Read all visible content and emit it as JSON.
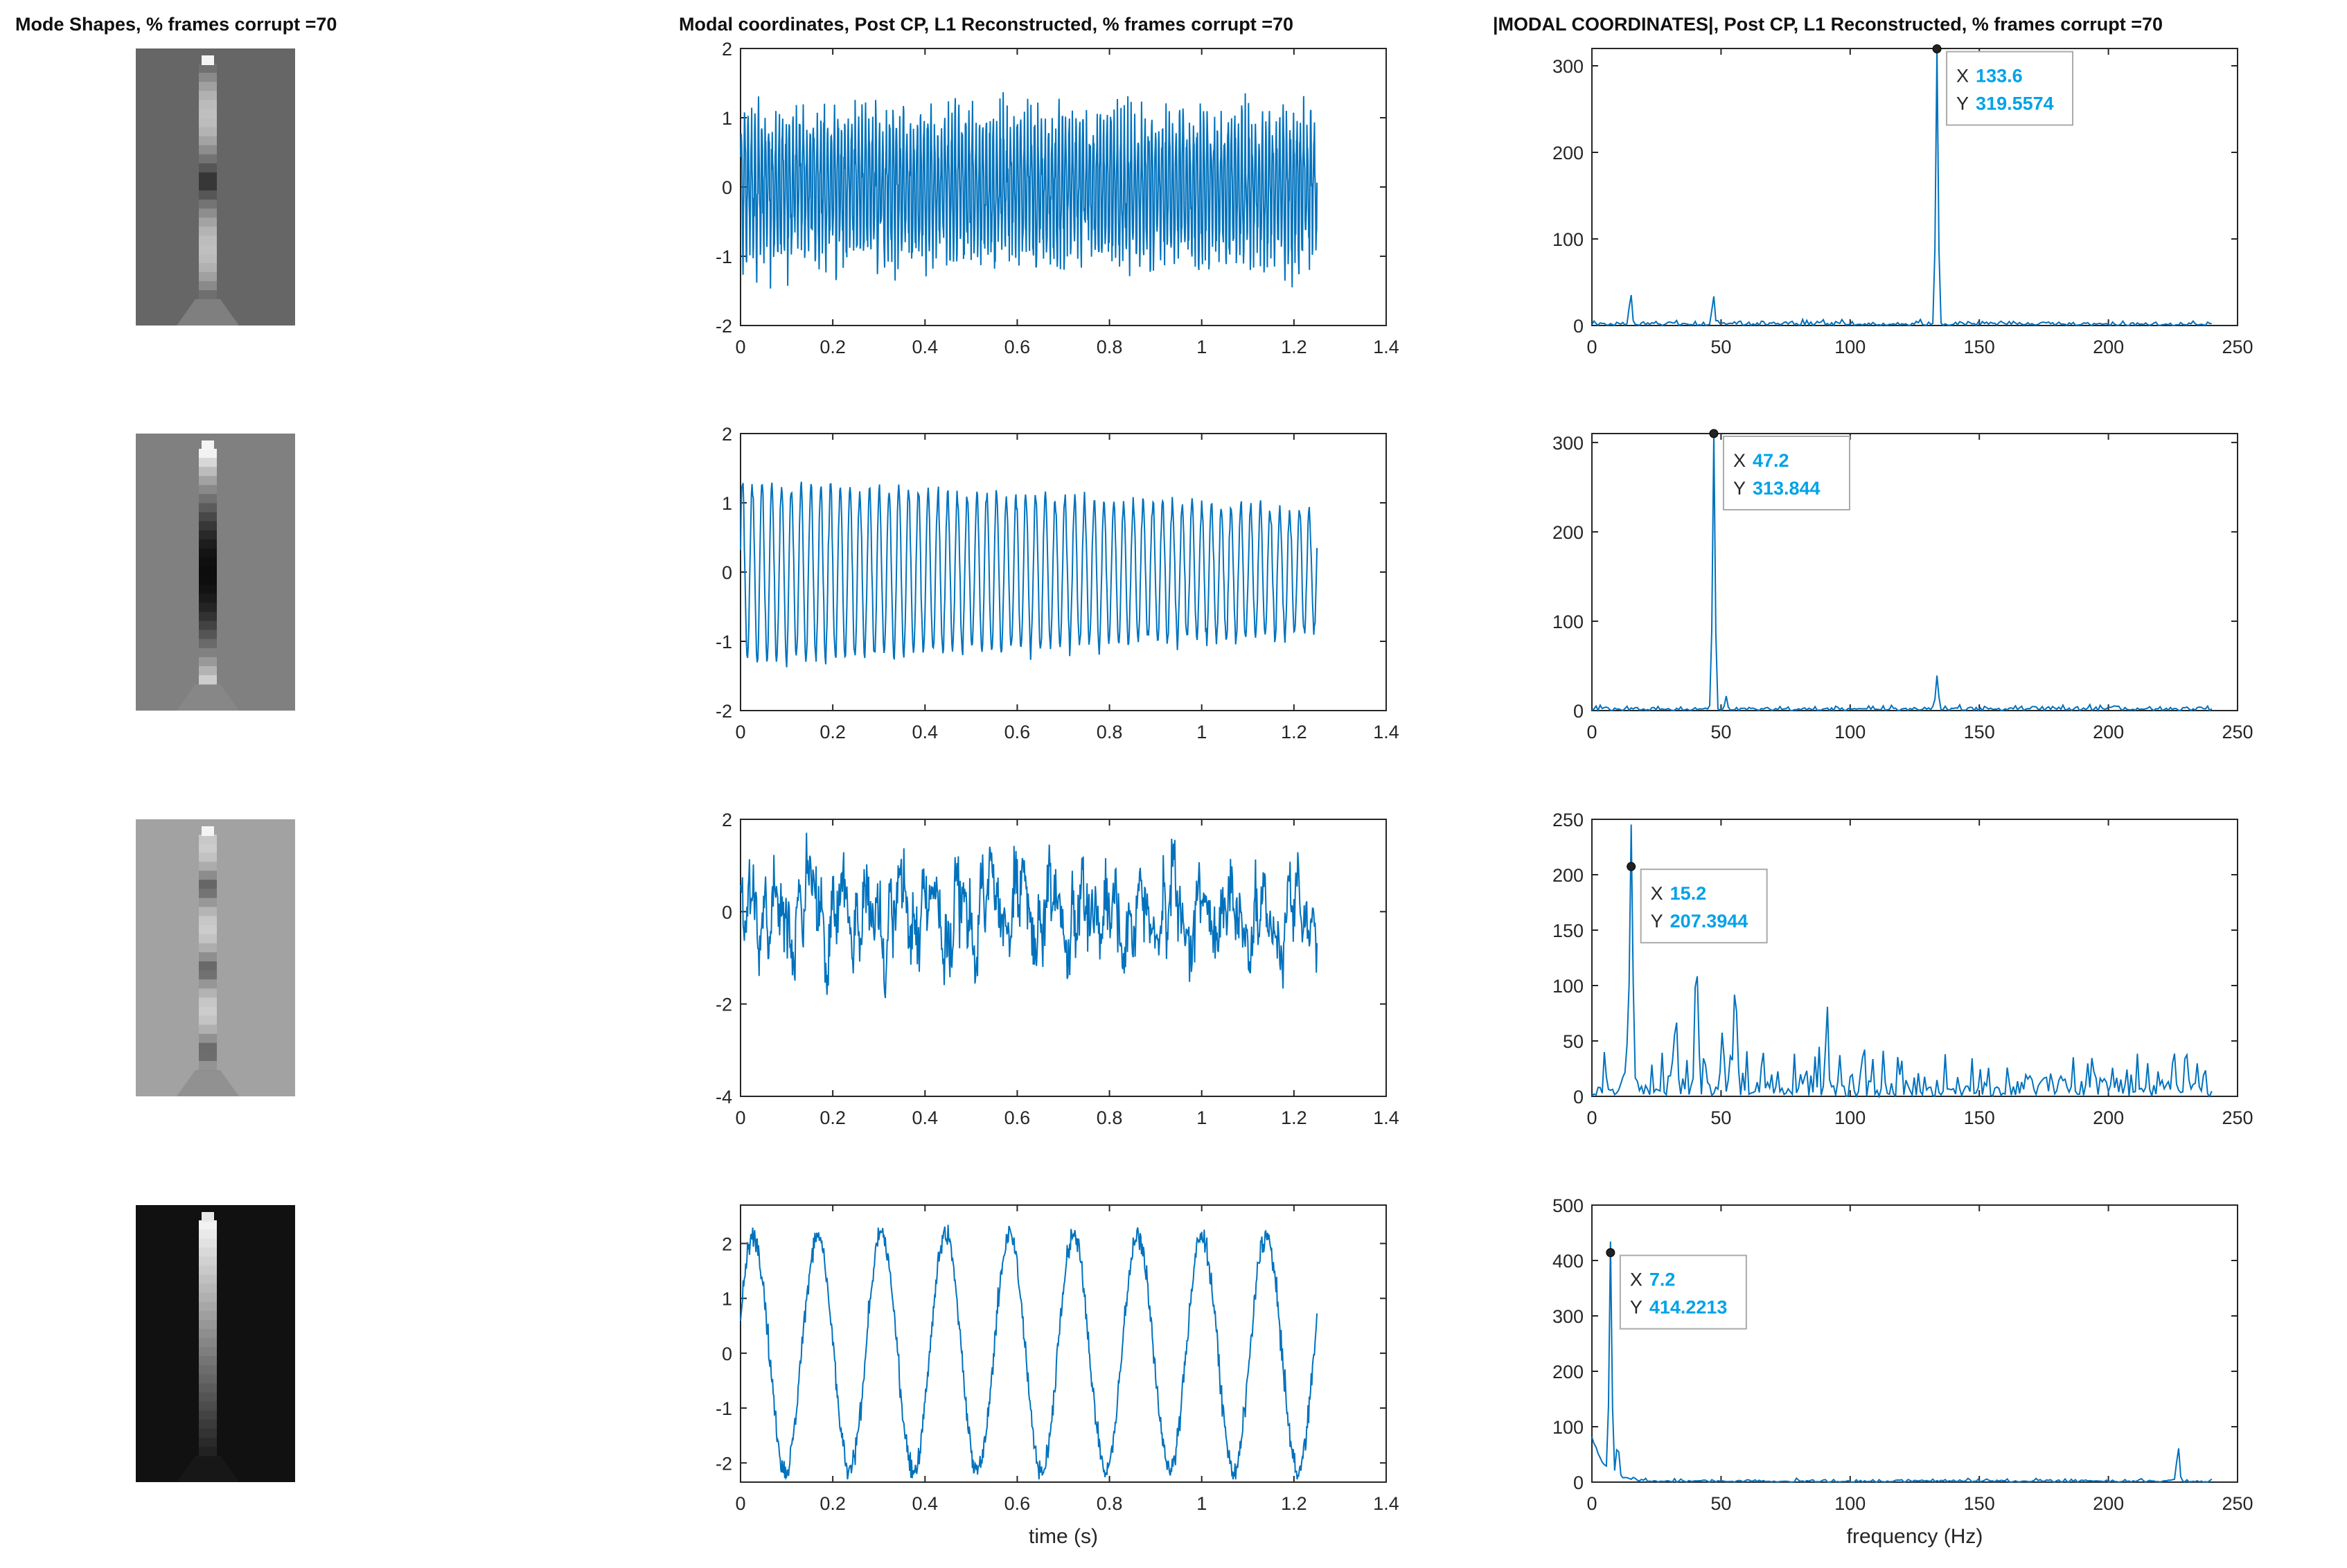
{
  "titles": {
    "col1": "Mode Shapes, % frames corrupt =70",
    "col2": "Modal coordinates, Post CP, L1 Reconstructed, % frames corrupt =70",
    "col3": "|MODAL COORDINATES|, Post CP, L1 Reconstructed, % frames corrupt =70"
  },
  "mode_shapes": [
    {
      "background": "#666666"
    },
    {
      "background": "#808080"
    },
    {
      "background": "#a2a2a2"
    },
    {
      "background": "#111111"
    }
  ],
  "chart_data": [
    {
      "type": "line",
      "panel": "time-1",
      "xlim": [
        0,
        1.4
      ],
      "ylim": [
        -2,
        2
      ],
      "xticks": [
        "0",
        "0.2",
        "0.4",
        "0.6",
        "0.8",
        "1",
        "1.2",
        "1.4"
      ],
      "yticks": [
        "-2",
        "-1",
        "0",
        "1",
        "2"
      ],
      "xlabel": "",
      "series": [
        {
          "frequency_hz": 133.6,
          "amplitude": 0.9,
          "noise": 0.45,
          "x_end": 1.25
        }
      ]
    },
    {
      "type": "line",
      "panel": "freq-1",
      "xlim": [
        0,
        250
      ],
      "ylim": [
        0,
        320
      ],
      "xticks": [
        "0",
        "50",
        "100",
        "150",
        "200",
        "250"
      ],
      "yticks": [
        "0",
        "100",
        "200",
        "300"
      ],
      "xlabel": "",
      "peaks": [
        {
          "x": 133.6,
          "y": 319.5574
        },
        {
          "x": 15,
          "y": 38
        },
        {
          "x": 47,
          "y": 30
        }
      ],
      "datatip": {
        "x_label": "X",
        "x_value": "133.6",
        "y_label": "Y",
        "y_value": "319.5574"
      }
    },
    {
      "type": "line",
      "panel": "time-2",
      "xlim": [
        0,
        1.4
      ],
      "ylim": [
        -2,
        2
      ],
      "xticks": [
        "0",
        "0.2",
        "0.4",
        "0.6",
        "0.8",
        "1",
        "1.2",
        "1.4"
      ],
      "yticks": [
        "-2",
        "-1",
        "0",
        "1",
        "2"
      ],
      "xlabel": "",
      "series": [
        {
          "frequency_hz": 47.2,
          "amplitude": 1.3,
          "noise": 0.12,
          "x_end": 1.25
        }
      ]
    },
    {
      "type": "line",
      "panel": "freq-2",
      "xlim": [
        0,
        250
      ],
      "ylim": [
        0,
        310
      ],
      "xticks": [
        "0",
        "50",
        "100",
        "150",
        "200",
        "250"
      ],
      "yticks": [
        "0",
        "100",
        "200",
        "300"
      ],
      "xlabel": "",
      "peaks": [
        {
          "x": 47.2,
          "y": 313.844
        },
        {
          "x": 133.6,
          "y": 38
        },
        {
          "x": 52,
          "y": 15
        }
      ],
      "datatip": {
        "x_label": "X",
        "x_value": "47.2",
        "y_label": "Y",
        "y_value": "313.844"
      }
    },
    {
      "type": "line",
      "panel": "time-3",
      "xlim": [
        0,
        1.4
      ],
      "ylim": [
        -4,
        2
      ],
      "xticks": [
        "0",
        "0.2",
        "0.4",
        "0.6",
        "0.8",
        "1",
        "1.2",
        "1.4"
      ],
      "yticks": [
        "-4",
        "-2",
        "0",
        "2"
      ],
      "xlabel": "",
      "series": [
        {
          "frequency_hz": 15.2,
          "amplitude": 0.7,
          "noise": 0.7,
          "x_end": 1.25
        }
      ]
    },
    {
      "type": "line",
      "panel": "freq-3",
      "xlim": [
        0,
        250
      ],
      "ylim": [
        0,
        250
      ],
      "xticks": [
        "0",
        "50",
        "100",
        "150",
        "200",
        "250"
      ],
      "yticks": [
        "0",
        "50",
        "100",
        "150",
        "200",
        "250"
      ],
      "xlabel": "",
      "peaks": [
        {
          "x": 15.2,
          "y": 207.3944
        },
        {
          "x": 40.5,
          "y": 120
        },
        {
          "x": 55.5,
          "y": 92
        },
        {
          "x": 32.5,
          "y": 66
        },
        {
          "x": 50.5,
          "y": 48
        },
        {
          "x": 91,
          "y": 45
        }
      ],
      "datatip": {
        "x_label": "X",
        "x_value": "15.2",
        "y_label": "Y",
        "y_value": "207.3944"
      }
    },
    {
      "type": "line",
      "panel": "time-4",
      "xlim": [
        0,
        1.4
      ],
      "ylim": [
        -2.35,
        2.7
      ],
      "xticks": [
        "0",
        "0.2",
        "0.4",
        "0.6",
        "0.8",
        "1",
        "1.2",
        "1.4"
      ],
      "yticks": [
        "-2",
        "-1",
        "0",
        "1",
        "2"
      ],
      "xlabel": "time (s)",
      "series": [
        {
          "frequency_hz": 7.2,
          "amplitude": 2.15,
          "noise": 0.22,
          "x_end": 1.25
        }
      ]
    },
    {
      "type": "line",
      "panel": "freq-4",
      "xlim": [
        0,
        250
      ],
      "ylim": [
        0,
        500
      ],
      "xticks": [
        "0",
        "50",
        "100",
        "150",
        "200",
        "250"
      ],
      "yticks": [
        "0",
        "100",
        "200",
        "300",
        "400",
        "500"
      ],
      "xlabel": "frequency (Hz)",
      "peaks": [
        {
          "x": 7.2,
          "y": 414.2213
        },
        {
          "x": 227,
          "y": 65
        },
        {
          "x": 10,
          "y": 60
        }
      ],
      "datatip": {
        "x_label": "X",
        "x_value": "7.2",
        "y_label": "Y",
        "y_value": "414.2213"
      }
    }
  ]
}
